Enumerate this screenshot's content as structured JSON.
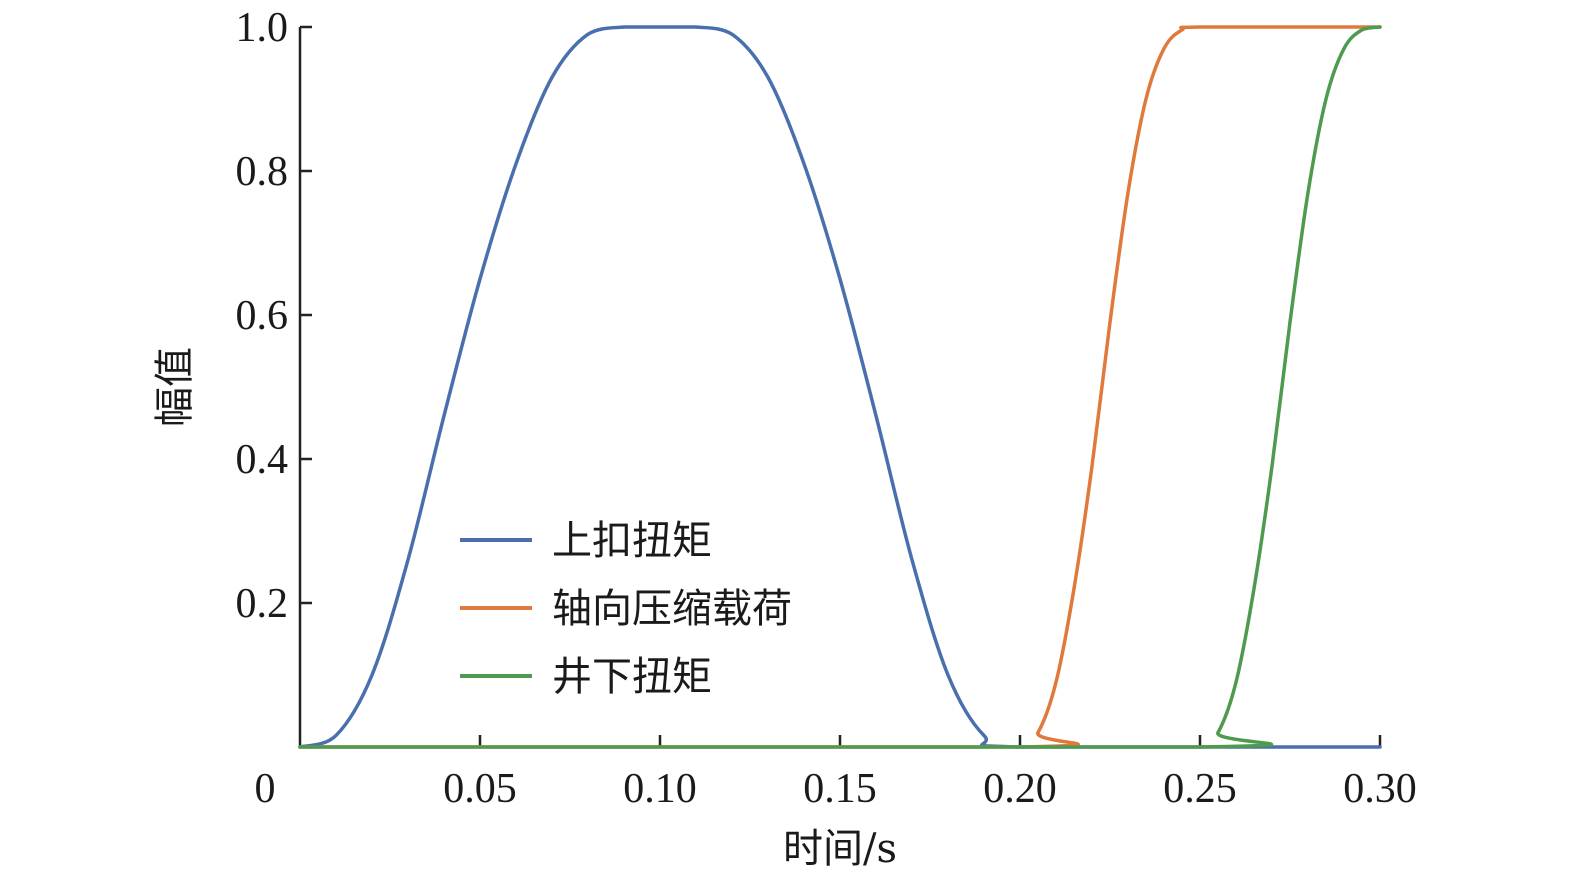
{
  "chart_data": {
    "type": "line",
    "xlabel": "时间/s",
    "ylabel": "幅值",
    "xlim": [
      0,
      0.3
    ],
    "ylim": [
      0,
      1.0
    ],
    "x_ticks": [
      0,
      0.05,
      0.1,
      0.15,
      0.2,
      0.25,
      0.3
    ],
    "x_tick_labels": [
      "0",
      "0.05",
      "0.10",
      "0.15",
      "0.20",
      "0.25",
      "0.30"
    ],
    "y_ticks": [
      0.2,
      0.4,
      0.6,
      0.8,
      1.0
    ],
    "y_tick_labels": [
      "0.2",
      "0.4",
      "0.6",
      "0.8",
      "1.0"
    ],
    "grid": false,
    "legend_position": "lower-left",
    "series": [
      {
        "name": "上扣扭矩",
        "color": "#4a6fad",
        "x": [
          0,
          0.01,
          0.02,
          0.03,
          0.04,
          0.05,
          0.06,
          0.07,
          0.08,
          0.09,
          0.1,
          0.11,
          0.12,
          0.13,
          0.14,
          0.15,
          0.16,
          0.17,
          0.18,
          0.19,
          0.2,
          0.3
        ],
        "values": [
          0,
          0.016,
          0.1,
          0.26,
          0.46,
          0.65,
          0.81,
          0.93,
          0.99,
          1.0,
          1.0,
          1.0,
          0.99,
          0.93,
          0.81,
          0.65,
          0.46,
          0.26,
          0.1,
          0.016,
          0,
          0
        ]
      },
      {
        "name": "轴向压缩载荷",
        "color": "#e07a3c",
        "x": [
          0,
          0.2,
          0.205,
          0.21,
          0.215,
          0.22,
          0.225,
          0.23,
          0.235,
          0.24,
          0.245,
          0.25,
          0.3
        ],
        "values": [
          0,
          0,
          0.02,
          0.09,
          0.22,
          0.39,
          0.59,
          0.77,
          0.9,
          0.97,
          0.996,
          1.0,
          1.0
        ]
      },
      {
        "name": "井下扭矩",
        "color": "#4e9a4e",
        "x": [
          0,
          0.25,
          0.255,
          0.26,
          0.265,
          0.27,
          0.275,
          0.28,
          0.285,
          0.29,
          0.295,
          0.3
        ],
        "values": [
          0,
          0,
          0.02,
          0.09,
          0.22,
          0.39,
          0.59,
          0.77,
          0.9,
          0.97,
          0.996,
          1.0
        ]
      }
    ]
  }
}
